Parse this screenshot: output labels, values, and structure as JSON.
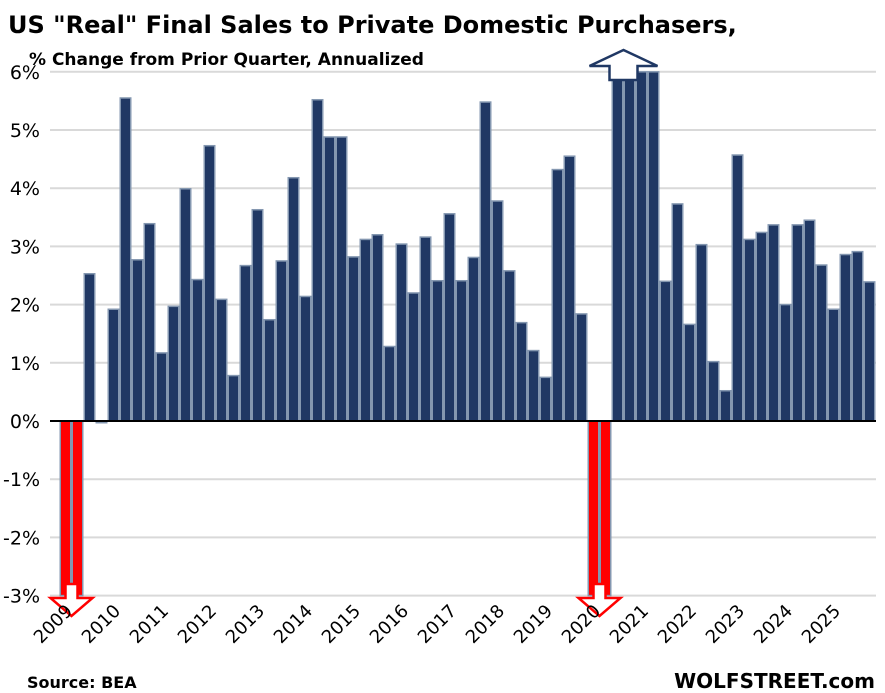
{
  "chart_data": {
    "type": "bar",
    "title": "US \"Real\" Final Sales to Private Domestic Purchasers,",
    "subtitle": "% Change from Prior Quarter, Annualized",
    "xlabel": "",
    "ylabel": "",
    "ylim": [
      -3,
      6
    ],
    "yticks": [
      "6%",
      "5%",
      "4%",
      "3%",
      "2%",
      "1%",
      "0%",
      "-1%",
      "-2%",
      "-3%"
    ],
    "ytick_values": [
      6,
      5,
      4,
      3,
      2,
      1,
      0,
      -1,
      -2,
      -3
    ],
    "grid": true,
    "categories_years": [
      "2009",
      "2010",
      "2011",
      "2012",
      "2013",
      "2014",
      "2015",
      "2016",
      "2017",
      "2018",
      "2019",
      "2020",
      "2021",
      "2022",
      "2023",
      "2024",
      "2025"
    ],
    "quarters_per_year": 4,
    "values": [
      -3,
      -3,
      2.53,
      -0.03,
      1.92,
      5.55,
      2.77,
      3.39,
      1.17,
      1.97,
      3.99,
      2.43,
      4.73,
      2.09,
      0.78,
      2.67,
      3.63,
      1.74,
      2.75,
      4.18,
      2.14,
      5.52,
      4.88,
      4.88,
      2.82,
      3.12,
      3.2,
      1.28,
      3.04,
      2.2,
      3.16,
      2.41,
      3.56,
      2.41,
      2.81,
      5.48,
      3.78,
      2.58,
      1.69,
      1.21,
      0.75,
      4.32,
      4.55,
      1.84,
      -3,
      -3,
      6,
      6,
      6,
      6,
      2.4,
      3.73,
      1.66,
      3.03,
      1.02,
      0.52,
      4.57,
      3.12,
      3.24,
      3.37,
      2.0,
      3.37,
      3.45,
      2.68,
      1.92,
      2.86,
      2.91,
      2.39
    ],
    "clipped_indices": [
      0,
      1,
      44,
      45,
      46,
      47,
      48,
      49
    ],
    "colors": {
      "positive": "#203864",
      "negative": "#ff0000",
      "bar_edge": "#8497b0",
      "grid": "#d9d9d9",
      "arrow_up": "#203864",
      "arrow_down": "#ff0000"
    }
  },
  "footer": {
    "source": "Source: BEA",
    "brand": "WOLFSTREET.com"
  }
}
